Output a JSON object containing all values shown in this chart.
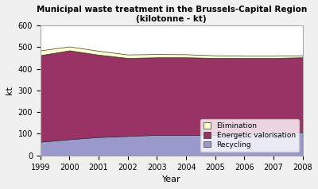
{
  "title_line1": "Municipal waste treatment in the Brussels-Capital Region",
  "title_line2": "(kilotonne - kt)",
  "xlabel": "Year",
  "ylabel": "kt",
  "years": [
    1999,
    2000,
    2001,
    2002,
    2003,
    2004,
    2005,
    2006,
    2007,
    2008
  ],
  "recycling": [
    63,
    75,
    85,
    90,
    95,
    95,
    95,
    100,
    102,
    108
  ],
  "energetic_valorisation": [
    400,
    410,
    380,
    360,
    358,
    358,
    355,
    350,
    348,
    345
  ],
  "elimination": [
    22,
    18,
    18,
    16,
    15,
    14,
    12,
    10,
    10,
    9
  ],
  "color_recycling": "#9999cc",
  "color_energetic": "#993366",
  "color_elimination": "#ffffcc",
  "ylim": [
    0,
    600
  ],
  "yticks": [
    0,
    100,
    200,
    300,
    400,
    500,
    600
  ],
  "background_color": "#f0f0f0",
  "plot_bg": "#ffffff",
  "legend_labels": [
    "Elimination",
    "Energetic valorisation",
    "Recycling"
  ]
}
